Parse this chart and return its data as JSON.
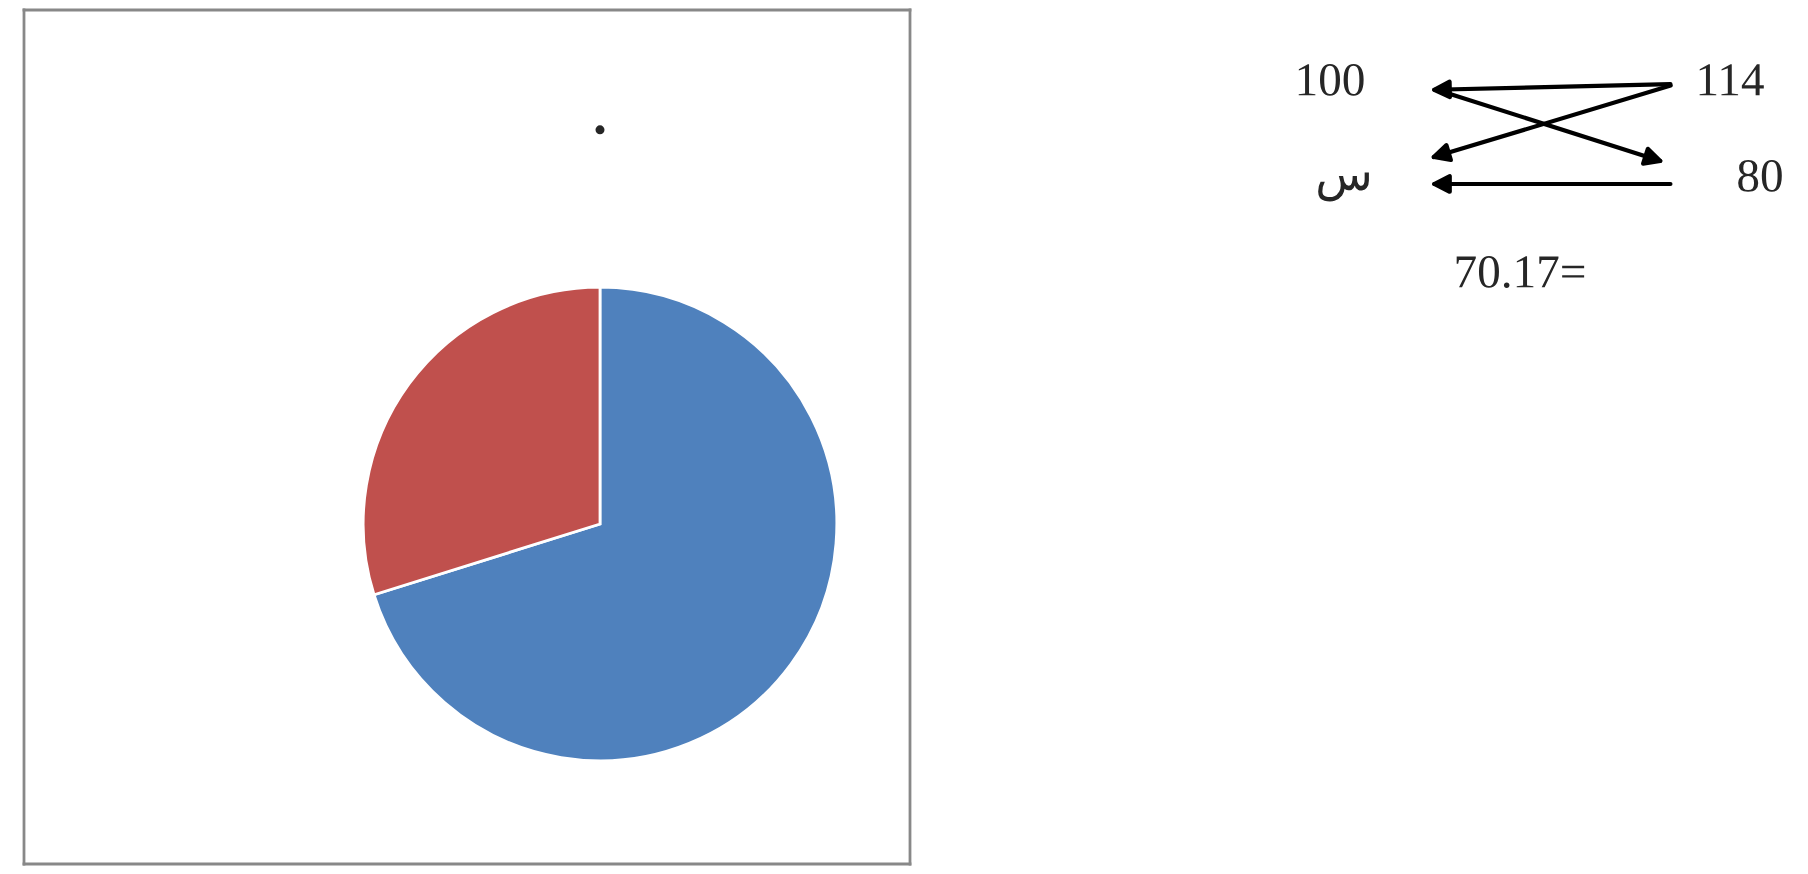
{
  "chart_data": {
    "type": "pie",
    "title": ".",
    "categories": [
      null,
      null
    ],
    "values": [
      70.17,
      29.83
    ],
    "colors": [
      "#4f81bd",
      "#c0504d"
    ],
    "annotations": [
      "100",
      "114",
      "س",
      "80",
      "70.17="
    ]
  }
}
